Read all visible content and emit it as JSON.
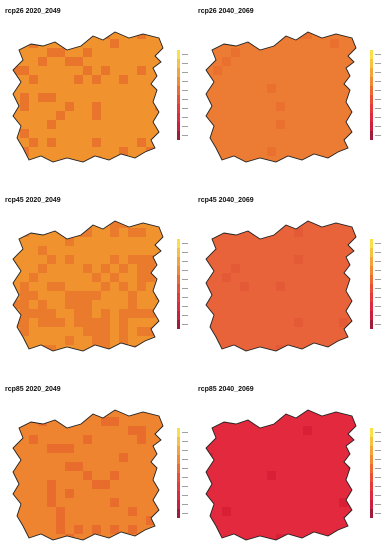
{
  "chart_data": [
    {
      "type": "heatmap",
      "title": "rcp26 2020_2049",
      "base_color": "#f0922e",
      "patch_color": "#e9752c",
      "patch_density": 0.22
    },
    {
      "type": "heatmap",
      "title": "rcp26 2040_2069",
      "base_color": "#ec7b33",
      "patch_color": "#e9702f",
      "patch_density": 0.04
    },
    {
      "type": "heatmap",
      "title": "rcp45 2020_2049",
      "base_color": "#f0922e",
      "patch_color": "#ea7a2c",
      "patch_density": 0.35
    },
    {
      "type": "heatmap",
      "title": "rcp45 2040_2069",
      "base_color": "#e9633a",
      "patch_color": "#e55a36",
      "patch_density": 0.04
    },
    {
      "type": "heatmap",
      "title": "rcp85 2020_2049",
      "base_color": "#ee8430",
      "patch_color": "#e86d2d",
      "patch_density": 0.18
    },
    {
      "type": "heatmap",
      "title": "rcp85 2040_2069",
      "base_color": "#e2293d",
      "patch_color": "#d91f36",
      "patch_density": 0.05
    }
  ],
  "legend_colors": [
    "#f7e04a",
    "#f5c242",
    "#f3a53b",
    "#f08a34",
    "#ec6b32",
    "#e84f36",
    "#e33a3b",
    "#dc2a40",
    "#c9203f",
    "#9e1b3a"
  ]
}
